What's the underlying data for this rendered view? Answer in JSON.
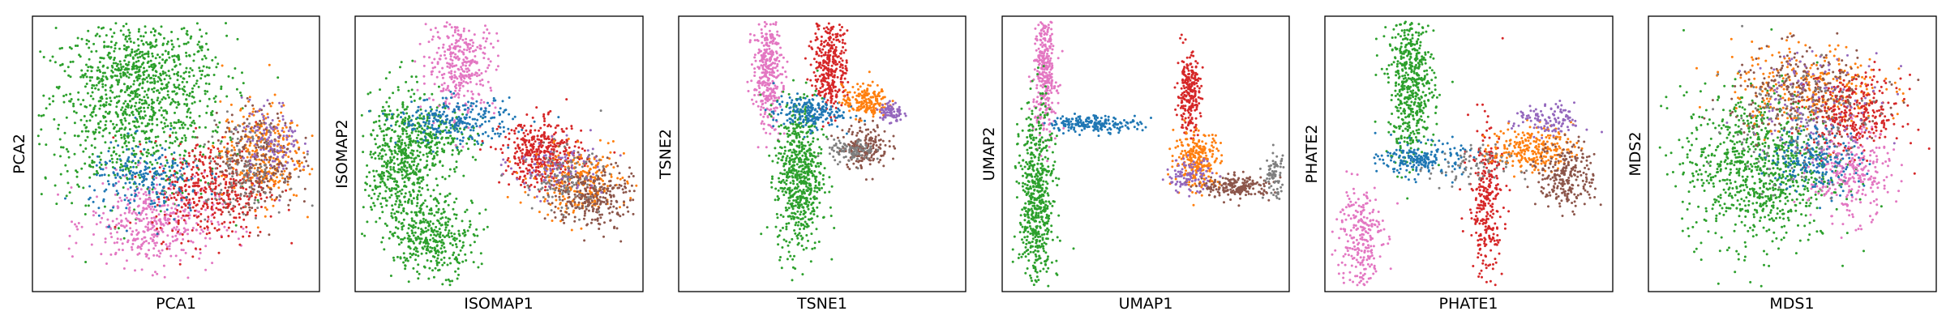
{
  "chart_data": [
    {
      "type": "scatter",
      "title": "",
      "xlabel": "PCA1",
      "ylabel": "PCA2",
      "xticks": [],
      "yticks": [],
      "grid": false,
      "legend": "none",
      "clusters": [
        {
          "color": "#2ca02c",
          "x": 0.35,
          "y": 0.65,
          "sx": 0.16,
          "sy": 0.16,
          "n": 900
        },
        {
          "color": "#2ca02c",
          "x": 0.4,
          "y": 0.82,
          "sx": 0.12,
          "sy": 0.08,
          "n": 300
        },
        {
          "color": "#e377c2",
          "x": 0.42,
          "y": 0.25,
          "sx": 0.11,
          "sy": 0.08,
          "n": 420
        },
        {
          "color": "#d62728",
          "x": 0.62,
          "y": 0.37,
          "sx": 0.1,
          "sy": 0.09,
          "n": 420
        },
        {
          "color": "#ff7f0e",
          "x": 0.8,
          "y": 0.5,
          "sx": 0.07,
          "sy": 0.09,
          "n": 300
        },
        {
          "color": "#8c564b",
          "x": 0.78,
          "y": 0.48,
          "sx": 0.07,
          "sy": 0.09,
          "n": 260
        },
        {
          "color": "#9467bd",
          "x": 0.83,
          "y": 0.55,
          "sx": 0.05,
          "sy": 0.07,
          "n": 120
        },
        {
          "color": "#1f77b4",
          "x": 0.4,
          "y": 0.4,
          "sx": 0.1,
          "sy": 0.07,
          "n": 220
        },
        {
          "color": "#7f7f7f",
          "x": 0.72,
          "y": 0.45,
          "sx": 0.08,
          "sy": 0.08,
          "n": 120
        }
      ]
    },
    {
      "type": "scatter",
      "title": "",
      "xlabel": "ISOMAP1",
      "ylabel": "ISOMAP2",
      "xticks": [],
      "yticks": [],
      "grid": false,
      "legend": "none",
      "clusters": [
        {
          "color": "#2ca02c",
          "x": 0.15,
          "y": 0.45,
          "sx": 0.06,
          "sy": 0.14,
          "n": 500
        },
        {
          "color": "#2ca02c",
          "x": 0.28,
          "y": 0.2,
          "sx": 0.07,
          "sy": 0.07,
          "n": 350
        },
        {
          "color": "#2ca02c",
          "x": 0.25,
          "y": 0.55,
          "sx": 0.08,
          "sy": 0.06,
          "n": 250
        },
        {
          "color": "#e377c2",
          "x": 0.37,
          "y": 0.83,
          "sx": 0.06,
          "sy": 0.09,
          "n": 350
        },
        {
          "color": "#1f77b4",
          "x": 0.35,
          "y": 0.62,
          "sx": 0.1,
          "sy": 0.04,
          "n": 250
        },
        {
          "color": "#d62728",
          "x": 0.65,
          "y": 0.5,
          "sx": 0.07,
          "sy": 0.06,
          "n": 400
        },
        {
          "color": "#ff7f0e",
          "x": 0.78,
          "y": 0.4,
          "sx": 0.08,
          "sy": 0.06,
          "n": 250
        },
        {
          "color": "#8c564b",
          "x": 0.82,
          "y": 0.35,
          "sx": 0.07,
          "sy": 0.06,
          "n": 300
        },
        {
          "color": "#9467bd",
          "x": 0.7,
          "y": 0.45,
          "sx": 0.08,
          "sy": 0.05,
          "n": 100
        },
        {
          "color": "#7f7f7f",
          "x": 0.72,
          "y": 0.4,
          "sx": 0.07,
          "sy": 0.06,
          "n": 100
        }
      ]
    },
    {
      "type": "scatter",
      "title": "",
      "xlabel": "TSNE1",
      "ylabel": "TSNE2",
      "xticks": [],
      "yticks": [],
      "grid": false,
      "legend": "none",
      "clusters": [
        {
          "color": "#e377c2",
          "x": 0.31,
          "y": 0.8,
          "sx": 0.025,
          "sy": 0.1,
          "n": 350
        },
        {
          "color": "#d62728",
          "x": 0.53,
          "y": 0.83,
          "sx": 0.03,
          "sy": 0.09,
          "n": 350
        },
        {
          "color": "#2ca02c",
          "x": 0.42,
          "y": 0.42,
          "sx": 0.04,
          "sy": 0.14,
          "n": 650
        },
        {
          "color": "#1f77b4",
          "x": 0.45,
          "y": 0.65,
          "sx": 0.06,
          "sy": 0.03,
          "n": 200
        },
        {
          "color": "#ff7f0e",
          "x": 0.65,
          "y": 0.69,
          "sx": 0.04,
          "sy": 0.03,
          "n": 180
        },
        {
          "color": "#8c564b",
          "x": 0.65,
          "y": 0.53,
          "sx": 0.04,
          "sy": 0.04,
          "n": 180
        },
        {
          "color": "#9467bd",
          "x": 0.74,
          "y": 0.65,
          "sx": 0.02,
          "sy": 0.02,
          "n": 80
        },
        {
          "color": "#7f7f7f",
          "x": 0.6,
          "y": 0.51,
          "sx": 0.04,
          "sy": 0.02,
          "n": 100
        }
      ]
    },
    {
      "type": "scatter",
      "title": "",
      "xlabel": "UMAP1",
      "ylabel": "UMAP2",
      "xticks": [],
      "yticks": [],
      "grid": false,
      "legend": "none",
      "clusters": [
        {
          "color": "#e377c2",
          "x": 0.15,
          "y": 0.8,
          "sx": 0.02,
          "sy": 0.12,
          "n": 350
        },
        {
          "color": "#2ca02c",
          "x": 0.12,
          "y": 0.32,
          "sx": 0.03,
          "sy": 0.18,
          "n": 600
        },
        {
          "color": "#1f77b4",
          "x": 0.32,
          "y": 0.61,
          "sx": 0.08,
          "sy": 0.015,
          "n": 200
        },
        {
          "color": "#d62728",
          "x": 0.65,
          "y": 0.72,
          "sx": 0.02,
          "sy": 0.07,
          "n": 250
        },
        {
          "color": "#ff7f0e",
          "x": 0.68,
          "y": 0.48,
          "sx": 0.04,
          "sy": 0.05,
          "n": 250
        },
        {
          "color": "#8c564b",
          "x": 0.82,
          "y": 0.38,
          "sx": 0.06,
          "sy": 0.02,
          "n": 200
        },
        {
          "color": "#9467bd",
          "x": 0.65,
          "y": 0.42,
          "sx": 0.04,
          "sy": 0.03,
          "n": 100
        },
        {
          "color": "#7f7f7f",
          "x": 0.95,
          "y": 0.42,
          "sx": 0.02,
          "sy": 0.04,
          "n": 80
        }
      ]
    },
    {
      "type": "scatter",
      "title": "",
      "xlabel": "PHATE1",
      "ylabel": "PHATE2",
      "xticks": [],
      "yticks": [],
      "grid": false,
      "legend": "none",
      "clusters": [
        {
          "color": "#2ca02c",
          "x": 0.3,
          "y": 0.75,
          "sx": 0.04,
          "sy": 0.14,
          "n": 550
        },
        {
          "color": "#e377c2",
          "x": 0.12,
          "y": 0.2,
          "sx": 0.04,
          "sy": 0.1,
          "n": 250
        },
        {
          "color": "#1f77b4",
          "x": 0.34,
          "y": 0.48,
          "sx": 0.07,
          "sy": 0.03,
          "n": 200
        },
        {
          "color": "#d62728",
          "x": 0.56,
          "y": 0.32,
          "sx": 0.03,
          "sy": 0.14,
          "n": 300
        },
        {
          "color": "#ff7f0e",
          "x": 0.72,
          "y": 0.52,
          "sx": 0.07,
          "sy": 0.04,
          "n": 250
        },
        {
          "color": "#8c564b",
          "x": 0.84,
          "y": 0.42,
          "sx": 0.05,
          "sy": 0.06,
          "n": 250
        },
        {
          "color": "#9467bd",
          "x": 0.78,
          "y": 0.62,
          "sx": 0.06,
          "sy": 0.03,
          "n": 120
        },
        {
          "color": "#7f7f7f",
          "x": 0.5,
          "y": 0.45,
          "sx": 0.07,
          "sy": 0.04,
          "n": 80
        }
      ]
    },
    {
      "type": "scatter",
      "title": "",
      "xlabel": "MDS1",
      "ylabel": "MDS2",
      "xticks": [],
      "yticks": [],
      "grid": false,
      "legend": "none",
      "clusters": [
        {
          "color": "#2ca02c",
          "x": 0.38,
          "y": 0.45,
          "sx": 0.13,
          "sy": 0.14,
          "n": 900
        },
        {
          "color": "#ff7f0e",
          "x": 0.55,
          "y": 0.74,
          "sx": 0.13,
          "sy": 0.08,
          "n": 300
        },
        {
          "color": "#8c564b",
          "x": 0.55,
          "y": 0.72,
          "sx": 0.13,
          "sy": 0.08,
          "n": 280
        },
        {
          "color": "#d62728",
          "x": 0.72,
          "y": 0.64,
          "sx": 0.08,
          "sy": 0.07,
          "n": 300
        },
        {
          "color": "#e377c2",
          "x": 0.7,
          "y": 0.42,
          "sx": 0.07,
          "sy": 0.08,
          "n": 280
        },
        {
          "color": "#9467bd",
          "x": 0.58,
          "y": 0.68,
          "sx": 0.12,
          "sy": 0.1,
          "n": 150
        },
        {
          "color": "#1f77b4",
          "x": 0.58,
          "y": 0.48,
          "sx": 0.08,
          "sy": 0.06,
          "n": 200
        },
        {
          "color": "#7f7f7f",
          "x": 0.5,
          "y": 0.6,
          "sx": 0.14,
          "sy": 0.12,
          "n": 120
        }
      ]
    }
  ]
}
